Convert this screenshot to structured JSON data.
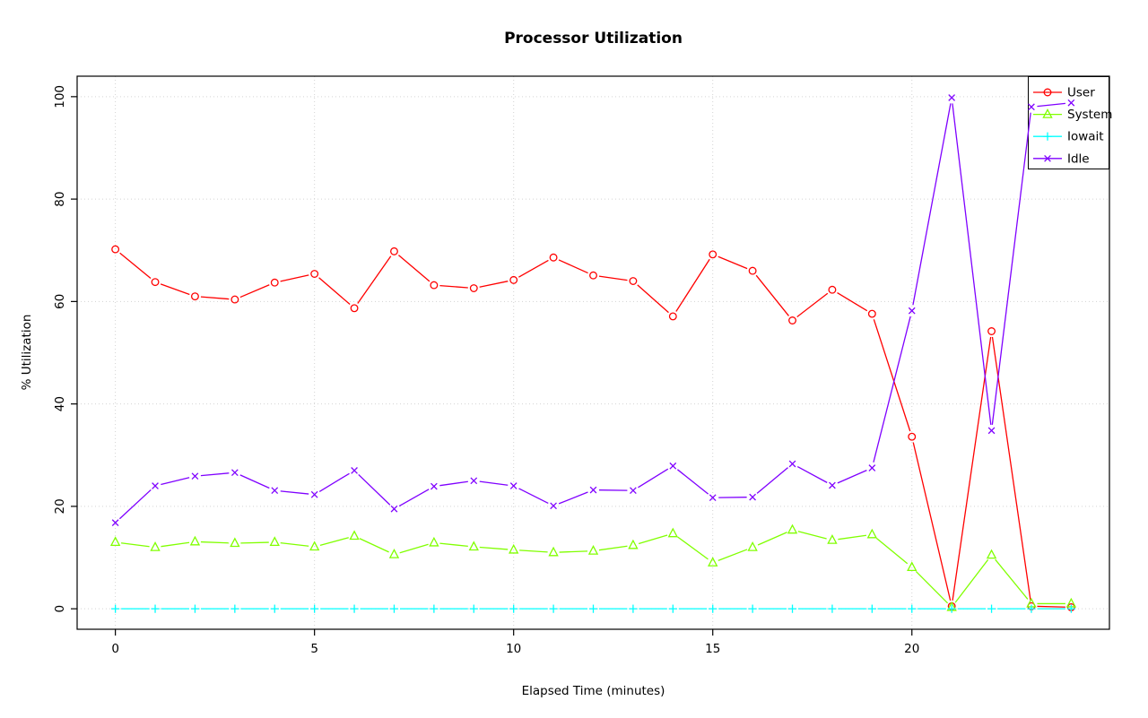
{
  "title": "Processor Utilization",
  "background": "#FFFFFF",
  "chart_data": {
    "type": "line",
    "title": "Processor Utilization",
    "xlabel": "Elapsed Time (minutes)",
    "ylabel": "% Utilization",
    "xlim": [
      0,
      24
    ],
    "ylim": [
      0,
      100
    ],
    "xticks": [
      0,
      5,
      10,
      15,
      20
    ],
    "yticks": [
      0,
      20,
      40,
      60,
      80,
      100
    ],
    "grid": true,
    "grid_style": "dotted",
    "grid_color": "#D3D3D3",
    "legend_position": "top-right",
    "x": [
      0,
      1,
      2,
      3,
      4,
      5,
      6,
      7,
      8,
      9,
      10,
      11,
      12,
      13,
      14,
      15,
      16,
      17,
      18,
      19,
      20,
      21,
      22,
      23,
      24
    ],
    "series": [
      {
        "name": "User",
        "color": "#FF0000",
        "marker": "circle",
        "values": [
          70.2,
          63.8,
          61.0,
          60.4,
          63.7,
          65.4,
          58.7,
          69.8,
          63.2,
          62.6,
          64.2,
          68.6,
          65.1,
          64.0,
          57.1,
          69.2,
          66.0,
          56.3,
          62.3,
          57.6,
          33.6,
          0.5,
          54.2,
          0.5,
          0.3
        ]
      },
      {
        "name": "System",
        "color": "#80FF00",
        "marker": "triangle",
        "values": [
          13.0,
          12.0,
          13.1,
          12.8,
          13.0,
          12.1,
          14.2,
          10.6,
          12.9,
          12.1,
          11.5,
          11.0,
          11.3,
          12.4,
          14.7,
          9.0,
          12.0,
          15.4,
          13.4,
          14.5,
          8.1,
          0.3,
          10.5,
          1.0,
          1.0
        ]
      },
      {
        "name": "Iowait",
        "color": "#00FFFF",
        "marker": "plus",
        "values": [
          0,
          0,
          0,
          0,
          0,
          0,
          0,
          0,
          0,
          0,
          0,
          0,
          0,
          0,
          0,
          0,
          0,
          0,
          0,
          0,
          0,
          0,
          0,
          0,
          0
        ]
      },
      {
        "name": "Idle",
        "color": "#7F00FF",
        "marker": "x",
        "values": [
          16.8,
          24.0,
          25.9,
          26.6,
          23.1,
          22.3,
          27.0,
          19.5,
          23.9,
          25.0,
          24.0,
          20.1,
          23.2,
          23.1,
          27.9,
          21.7,
          21.8,
          28.3,
          24.1,
          27.5,
          58.2,
          99.8,
          34.8,
          98.0,
          98.8
        ]
      }
    ]
  }
}
